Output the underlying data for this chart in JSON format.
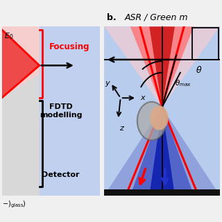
{
  "fig_bg": "#f0f0f0",
  "left_gray_bg": "#d8d8d8",
  "left_blue_bg": "#c0d0ee",
  "right_blue_bg": "#b8ccee",
  "title_b": "b.",
  "title_rest": "ASR / Green m",
  "label_E0": "$E_0$",
  "label_focusing": "Focusing",
  "label_fdtd": "FDTD\nmodelling",
  "label_detector": "Detector",
  "label_bottom": "$-$)$_{glass}$)",
  "label_theta_max": "$\\theta_{max}$",
  "label_theta": "$\\theta$",
  "red_fill": "#ee3333",
  "red_light": "#ffaaaa",
  "blue_fill": "#2233bb",
  "blue_light": "#6688dd",
  "sphere_gray": "#999999",
  "sphere_peach": "#ddaa88",
  "black_bar": "#111111"
}
